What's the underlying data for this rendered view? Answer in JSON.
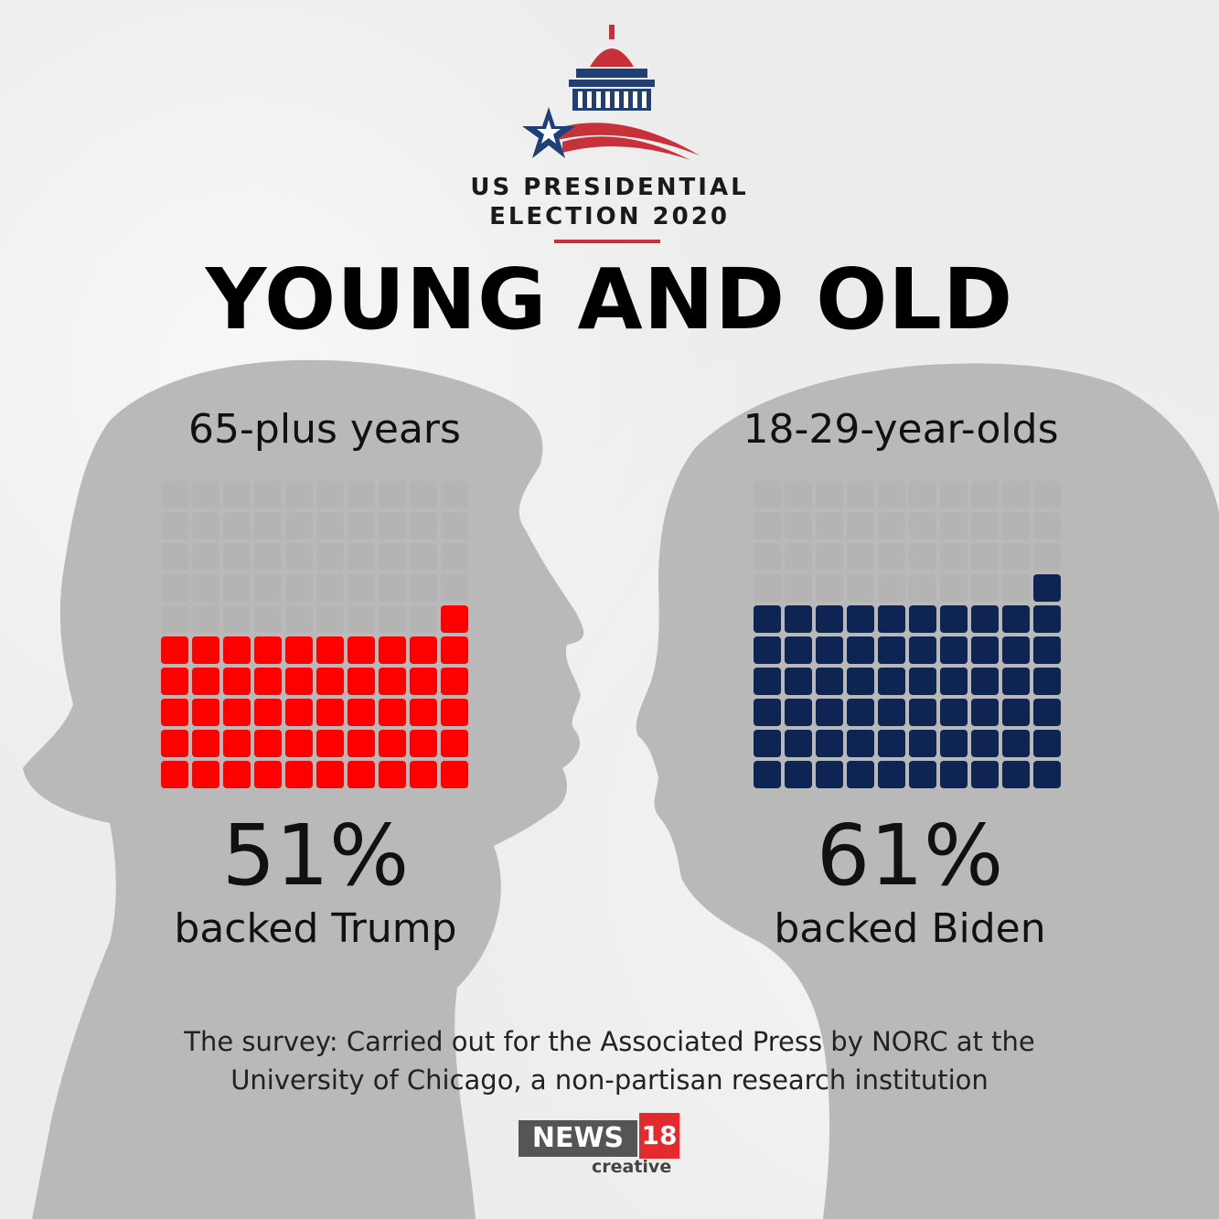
{
  "header": {
    "election_line1": "US PRESIDENTIAL",
    "election_line2": "ELECTION 2020",
    "title": "YOUNG AND OLD"
  },
  "chart_data": [
    {
      "type": "waffle",
      "title": "65-plus years",
      "grid": [
        10,
        10
      ],
      "value": 51,
      "total": 100,
      "value_label": "51%",
      "caption": "backed Trump",
      "filled_color": "#ff0000",
      "empty_color": "#b4b4b4"
    },
    {
      "type": "waffle",
      "title": "18-29-year-olds",
      "grid": [
        10,
        10
      ],
      "value": 61,
      "total": 100,
      "value_label": "61%",
      "caption": "backed Biden",
      "filled_color": "#0e2452",
      "empty_color": "#b4b4b4"
    }
  ],
  "source_note": {
    "line1": "The survey: Carried out for the Associated Press by NORC at the",
    "line2": "University of Chicago, a non-partisan research institution"
  },
  "brand": {
    "news": "NEWS",
    "number": "18",
    "sub": "creative",
    "red": "#e4292f",
    "gray": "#555555"
  },
  "emblem": {
    "icon": "capitol-dome-star-flag-icon",
    "red": "#c8303a",
    "blue": "#1e3f78"
  }
}
